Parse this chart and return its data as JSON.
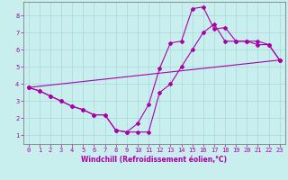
{
  "xlabel": "Windchill (Refroidissement éolien,°C)",
  "xlim": [
    -0.5,
    23.5
  ],
  "ylim": [
    0.5,
    8.8
  ],
  "xticks": [
    0,
    1,
    2,
    3,
    4,
    5,
    6,
    7,
    8,
    9,
    10,
    11,
    12,
    13,
    14,
    15,
    16,
    17,
    18,
    19,
    20,
    21,
    22,
    23
  ],
  "yticks": [
    1,
    2,
    3,
    4,
    5,
    6,
    7,
    8
  ],
  "background_color": "#c8eeee",
  "grid_color": "#a8d8d8",
  "line_color": "#aa00aa",
  "line1_x": [
    0,
    1,
    2,
    3,
    4,
    5,
    6,
    7,
    8,
    9,
    10,
    11,
    12,
    13,
    14,
    15,
    16,
    17,
    18,
    19,
    20,
    21,
    22,
    23
  ],
  "line1_y": [
    3.8,
    3.6,
    3.3,
    3.0,
    2.7,
    2.5,
    2.2,
    2.2,
    1.3,
    1.2,
    1.2,
    1.2,
    3.5,
    4.0,
    5.0,
    6.0,
    7.0,
    7.5,
    6.5,
    6.5,
    6.5,
    6.3,
    6.3,
    5.4
  ],
  "line2_x": [
    0,
    1,
    2,
    3,
    4,
    5,
    6,
    7,
    8,
    9,
    10,
    11,
    12,
    13,
    14,
    15,
    16,
    17,
    18,
    19,
    20,
    21,
    22,
    23
  ],
  "line2_y": [
    3.8,
    3.6,
    3.3,
    3.0,
    2.7,
    2.5,
    2.2,
    2.2,
    1.3,
    1.2,
    1.7,
    2.8,
    4.9,
    6.4,
    6.5,
    8.4,
    8.5,
    7.2,
    7.3,
    6.5,
    6.5,
    6.5,
    6.3,
    5.4
  ],
  "line3_x": [
    0,
    23
  ],
  "line3_y": [
    3.8,
    5.4
  ],
  "marker": "D",
  "markersize": 2.0,
  "linewidth": 0.8,
  "tick_fontsize": 5.0,
  "label_fontsize": 5.5
}
